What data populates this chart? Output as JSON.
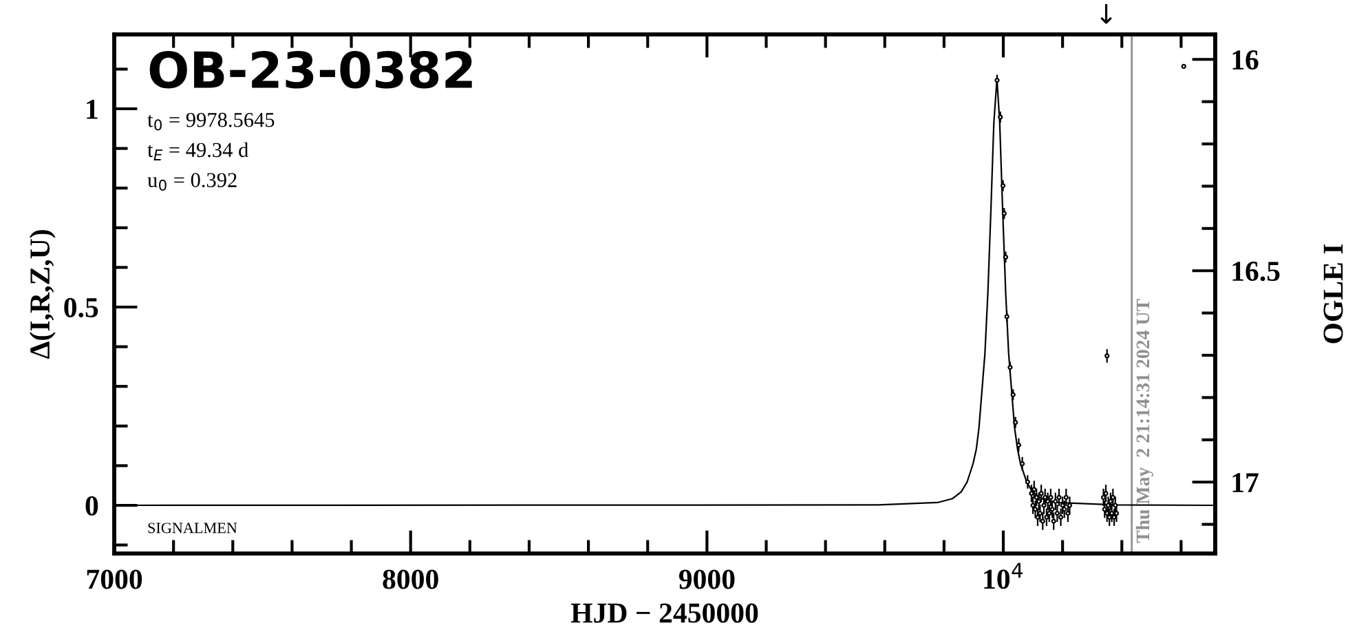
{
  "chart_data": {
    "type": "scatter",
    "title": "OB-23-0382",
    "subtitle": "t$_{0}$ = 9978.5645\nt$_{E}$ = 49.34 d\nu$_{0}$ = 0.392",
    "xlabel": "HJD − 2450000",
    "ylabel": "Δ(I,R,Z,U)",
    "y2label": "OGLE I",
    "xlim": [
      7000,
      10715
    ],
    "ylim": [
      -0.1215,
      1.1875
    ],
    "y2lim": [
      17.169,
      15.941
    ],
    "xticks": [
      7000,
      {
        "value": 7200,
        "label": null
      },
      {
        "value": 7400,
        "label": null
      },
      {
        "value": 7600,
        "label": null
      },
      {
        "value": 7800,
        "label": null
      },
      8000,
      {
        "value": 8200,
        "label": null
      },
      {
        "value": 8400,
        "label": null
      },
      {
        "value": 8600,
        "label": null
      },
      {
        "value": 8800,
        "label": null
      },
      9000,
      {
        "value": 9200,
        "label": null
      },
      {
        "value": 9400,
        "label": null
      },
      {
        "value": 9600,
        "label": null
      },
      {
        "value": 9800,
        "label": null
      },
      {
        "value": 10000,
        "label": "10$^{4}$"
      },
      {
        "value": 10200,
        "label": null
      },
      {
        "value": 10400,
        "label": null
      },
      {
        "value": 10600,
        "label": null
      }
    ],
    "yticks": [
      {
        "value": -0.1,
        "label": null
      },
      0,
      {
        "value": 0.1,
        "label": null
      },
      {
        "value": 0.2,
        "label": null
      },
      {
        "value": 0.3,
        "label": null
      },
      {
        "value": 0.4,
        "label": null
      },
      0.5,
      {
        "value": 0.6,
        "label": null
      },
      {
        "value": 0.7,
        "label": null
      },
      {
        "value": 0.8,
        "label": null
      },
      {
        "value": 0.9,
        "label": null
      },
      1,
      {
        "value": 1.1,
        "label": null
      }
    ],
    "y2ticks": [
      16,
      {
        "value": 16.1,
        "label": null
      },
      {
        "value": 16.2,
        "label": null
      },
      {
        "value": 16.3,
        "label": null
      },
      {
        "value": 16.4,
        "label": null
      },
      16.5,
      {
        "value": 16.6,
        "label": null
      },
      {
        "value": 16.7,
        "label": null
      },
      {
        "value": 16.8,
        "label": null
      },
      {
        "value": 16.9,
        "label": null
      },
      17,
      {
        "value": 17.1,
        "label": null
      }
    ],
    "grid": false,
    "legend": false,
    "ref_lines": [
      {
        "axis": "x",
        "value": 10433.4,
        "color": "#909090",
        "line_style": "solid"
      }
    ],
    "annotations": [
      "SIGNALMEN",
      "↓",
      "Thu May  2 21:14:31 2024 UT"
    ],
    "series": [
      {
        "type": "line",
        "color": "#000000",
        "line_style": "solid",
        "marker": "none",
        "x": [
          7000,
          9578,
          9778,
          9829,
          9858,
          9878,
          9898,
          9909,
          9918,
          9938,
          9948,
          9958,
          9968,
          9978.56,
          9988,
          9998,
          10008,
          10018,
          10038,
          10048,
          10058,
          10079,
          10098,
          10128,
          10178,
          10378,
          10715
        ],
        "values": [
          0,
          0.001,
          0.007,
          0.017,
          0.034,
          0.059,
          0.105,
          0.142,
          0.196,
          0.383,
          0.537,
          0.741,
          0.963,
          1.076,
          0.963,
          0.741,
          0.537,
          0.383,
          0.196,
          0.142,
          0.105,
          0.059,
          0.034,
          0.017,
          0.007,
          0.001,
          0
        ]
      },
      {
        "color": "#000000",
        "marker": "circle",
        "x": [
          9979,
          9990,
          9999,
          10003,
          10008,
          10012,
          10023,
          10033,
          10041,
          10052,
          10064,
          10082,
          10095,
          10100,
          10104,
          10108,
          10112,
          10116,
          10120,
          10124,
          10128,
          10133,
          10137,
          10141,
          10146,
          10150,
          10155,
          10160,
          10165,
          10170,
          10176,
          10182,
          10188,
          10194,
          10200,
          10206,
          10212,
          10218,
          10224,
          10338,
          10342,
          10346,
          10350,
          10354,
          10358,
          10362,
          10366,
          10370,
          10374,
          10378,
          10382,
          10350,
          10609
        ],
        "values": [
          1.072,
          0.979,
          0.806,
          0.736,
          0.626,
          0.476,
          0.348,
          0.279,
          0.209,
          0.152,
          0.105,
          0.059,
          0.03,
          0.0,
          0.04,
          -0.01,
          0.02,
          -0.03,
          0.01,
          -0.02,
          0.03,
          -0.04,
          0.0,
          0.02,
          -0.03,
          0.01,
          -0.02,
          0.02,
          -0.01,
          -0.04,
          0.01,
          -0.02,
          0.02,
          -0.03,
          0.0,
          -0.01,
          0.02,
          -0.02,
          0.0,
          0.02,
          -0.01,
          0.03,
          -0.02,
          0.0,
          -0.03,
          0.01,
          -0.02,
          0.02,
          -0.03,
          0.0,
          -0.02,
          0.377,
          1.107
        ],
        "errors": [
          0.012,
          0.012,
          0.012,
          0.012,
          0.012,
          0.012,
          0.012,
          0.012,
          0.012,
          0.015,
          0.015,
          0.015,
          0.02,
          0.02,
          0.02,
          0.02,
          0.02,
          0.02,
          0.02,
          0.02,
          0.02,
          0.02,
          0.02,
          0.02,
          0.02,
          0.02,
          0.02,
          0.02,
          0.02,
          0.02,
          0.02,
          0.02,
          0.02,
          0.02,
          0.02,
          0.02,
          0.02,
          0.02,
          0.02,
          0.02,
          0.02,
          0.02,
          0.02,
          0.02,
          0.02,
          0.02,
          0.02,
          0.02,
          0.02,
          0.02,
          0.02,
          0.015,
          null
        ]
      }
    ]
  }
}
